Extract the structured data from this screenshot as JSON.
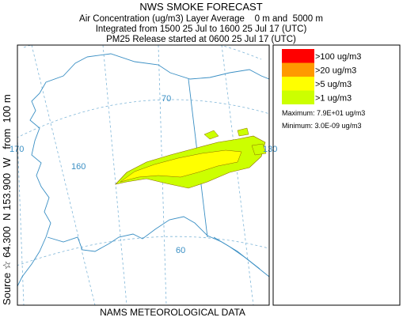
{
  "header": {
    "title": "NWS SMOKE FORECAST",
    "lines": [
      "Air Concentration (ug/m3) Layer Average    0 m and  5000 m",
      "Integrated from 1500 25 Jul to 1600 25 Jul 17 (UTC)",
      "PM25 Release started at 0600 25 Jul 17 (UTC)"
    ]
  },
  "side_label": "Source ☆ 64.300  N 153.900  W   from  100 m",
  "legend": {
    "items": [
      {
        "label": ">100 ug/m3",
        "color": "#ff0000"
      },
      {
        "label": ">20 ug/m3",
        "color": "#ff9900"
      },
      {
        "label": ">5 ug/m3",
        "color": "#ffff00"
      },
      {
        "label": ">1 ug/m3",
        "color": "#ccff00"
      }
    ],
    "maximum": "Maximum: 7.9E+01 ug/m3",
    "minimum": "Minimum: 3.0E-09 ug/m3"
  },
  "map": {
    "labels": [
      "170",
      "160",
      "70",
      "130",
      "60"
    ]
  },
  "footer": "NAMS METEOROLOGICAL DATA"
}
